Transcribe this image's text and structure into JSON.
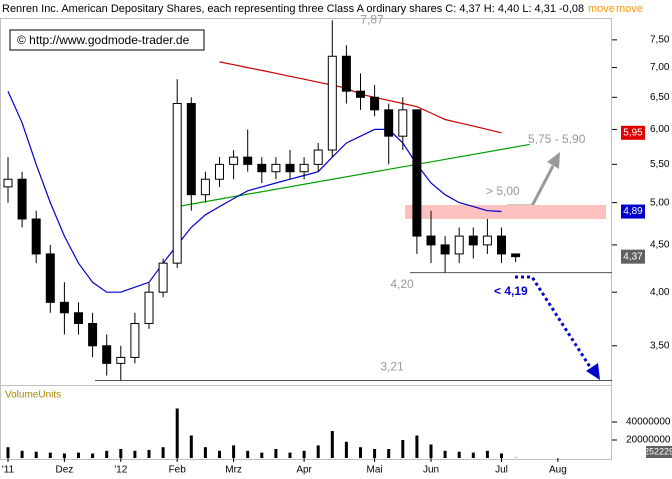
{
  "chart_data": {
    "type": "candlestick",
    "title": "Renren Inc. American Depositary Shares, each representing three Class A ordinary shares C: 4,37 H: 4,40 L: 4,31 -0,08",
    "links": [
      "move",
      "move"
    ],
    "watermark": "© http://www.godmode-trader.de",
    "categories": [
      "'11",
      null,
      null,
      null,
      "Dez",
      null,
      null,
      null,
      "'12",
      null,
      null,
      null,
      "Feb",
      null,
      null,
      null,
      "Mrz",
      null,
      null,
      null,
      null,
      "Apr",
      null,
      null,
      null,
      null,
      "Mai",
      null,
      null,
      null,
      "Jun",
      null,
      null,
      null,
      null,
      "Jul",
      null,
      null,
      null,
      "Aug",
      null,
      null,
      null,
      null
    ],
    "open": [
      5.2,
      5.3,
      4.8,
      4.4,
      3.9,
      3.8,
      3.7,
      3.5,
      3.35,
      3.4,
      3.7,
      4.0,
      4.3,
      6.4,
      5.1,
      5.3,
      5.5,
      5.6,
      5.5,
      5.4,
      5.5,
      5.4,
      5.5,
      5.7,
      7.2,
      6.6,
      6.5,
      6.3,
      5.9,
      6.3,
      4.6,
      4.5,
      4.4,
      4.6,
      4.5,
      4.6,
      4.4,
      null,
      null,
      null,
      null,
      null,
      null,
      null
    ],
    "high": [
      5.6,
      5.4,
      4.9,
      4.5,
      4.1,
      3.9,
      3.8,
      3.6,
      3.5,
      3.8,
      4.1,
      4.35,
      6.8,
      6.5,
      5.4,
      5.6,
      5.7,
      6.0,
      5.6,
      5.6,
      5.7,
      5.6,
      5.8,
      7.87,
      7.4,
      6.9,
      6.7,
      6.4,
      6.5,
      6.3,
      4.9,
      4.6,
      4.7,
      4.7,
      4.8,
      4.7,
      4.4,
      null,
      null,
      null,
      null,
      null,
      null,
      null
    ],
    "low": [
      5.0,
      4.7,
      4.3,
      3.8,
      3.6,
      3.6,
      3.4,
      3.25,
      3.21,
      3.35,
      3.65,
      3.95,
      4.25,
      4.9,
      5.0,
      5.2,
      5.3,
      5.4,
      5.25,
      5.3,
      5.3,
      5.3,
      5.4,
      5.6,
      6.4,
      6.3,
      6.2,
      5.5,
      5.7,
      4.4,
      4.3,
      4.2,
      4.3,
      4.35,
      4.4,
      4.3,
      4.31,
      null,
      null,
      null,
      null,
      null,
      null,
      null
    ],
    "close": [
      5.3,
      4.8,
      4.4,
      3.9,
      3.8,
      3.7,
      3.5,
      3.35,
      3.4,
      3.7,
      4.0,
      4.3,
      6.4,
      5.1,
      5.3,
      5.5,
      5.6,
      5.5,
      5.4,
      5.5,
      5.4,
      5.5,
      5.7,
      7.2,
      6.6,
      6.5,
      6.3,
      5.9,
      6.3,
      4.6,
      4.5,
      4.4,
      4.6,
      4.5,
      4.6,
      4.4,
      4.37,
      null,
      null,
      null,
      null,
      null,
      null,
      null
    ],
    "candle_colors": {
      "up": "#ffffff",
      "down": "#000000"
    },
    "log_scale": true,
    "ylim": [
      3.19,
      7.92
    ],
    "yticks": [
      {
        "value": 3.5,
        "label": "3,50"
      },
      {
        "value": 4,
        "label": "4,00"
      },
      {
        "value": 4.5,
        "label": "4,50"
      },
      {
        "value": 5,
        "label": "5,00"
      },
      {
        "value": 5.5,
        "label": "5,50"
      },
      {
        "value": 6,
        "label": "6,00"
      },
      {
        "value": 6.5,
        "label": "6,50"
      },
      {
        "value": 7,
        "label": "7,00"
      },
      {
        "value": 7.5,
        "label": "7,50"
      }
    ],
    "series": [
      {
        "color": "#0000cc",
        "values": [
          6.6,
          6.1,
          5.5,
          5.0,
          4.6,
          4.3,
          4.1,
          4.0,
          4.0,
          4.05,
          4.1,
          4.3,
          4.5,
          4.7,
          4.85,
          4.95,
          5.05,
          5.15,
          5.2,
          5.25,
          5.3,
          5.35,
          5.4,
          5.6,
          5.8,
          5.9,
          6.0,
          6.0,
          5.8,
          5.5,
          5.25,
          5.1,
          5.0,
          4.95,
          4.9,
          4.89,
          null,
          null,
          null,
          null,
          null,
          null,
          null,
          null
        ]
      },
      {
        "color": "#cc0000",
        "values": [
          null,
          null,
          null,
          null,
          null,
          null,
          null,
          null,
          null,
          null,
          null,
          null,
          null,
          null,
          null,
          7.1,
          7.05,
          7.0,
          6.95,
          6.9,
          6.85,
          6.8,
          6.75,
          6.7,
          6.65,
          6.55,
          6.5,
          6.45,
          6.4,
          6.35,
          6.25,
          6.15,
          6.1,
          6.05,
          6.0,
          5.95,
          null,
          null,
          null,
          null,
          null,
          null,
          null,
          null
        ]
      }
    ],
    "trendline": {
      "color": "#00a000",
      "values": [
        4.95,
        5.78
      ]
    },
    "zone": {
      "range": [
        4.8,
        4.97
      ],
      "color": "#ffc0c0"
    },
    "levels": [
      {
        "value": 7.87,
        "label": "7,87"
      },
      {
        "value": 4.2,
        "label": "4,20"
      },
      {
        "value": 3.21,
        "label": "3,21"
      }
    ],
    "price_labels": [
      {
        "value": 5.95,
        "label": "5,95",
        "color": "#e00000"
      },
      {
        "value": 4.89,
        "label": "4,89",
        "color": "#0000cc"
      },
      {
        "value": 4.37,
        "label": "4,37",
        "color": "#606060"
      }
    ],
    "annotations": [
      {
        "text": "> 5,00",
        "color": "#999999"
      },
      {
        "text": "5,75 - 5,90",
        "color": "#999999"
      },
      {
        "text": "< 4,19",
        "color": "#0000cc"
      }
    ],
    "volume": {
      "label": "VolumeUnits",
      "color": "#000000",
      "values": [
        12000000,
        8000000,
        7000000,
        6000000,
        5000000,
        6000000,
        5000000,
        8000000,
        10000000,
        8000000,
        9000000,
        12000000,
        55000000,
        25000000,
        12000000,
        8000000,
        14000000,
        8000000,
        6000000,
        10000000,
        6000000,
        8000000,
        14000000,
        30000000,
        18000000,
        12000000,
        10000000,
        10000000,
        20000000,
        25000000,
        15000000,
        8000000,
        7000000,
        6000000,
        8000000,
        5000000,
        252229,
        null,
        null,
        null,
        null,
        null,
        null,
        null
      ],
      "ylim": [
        0,
        80000000
      ],
      "yticks": [
        20000000,
        40000000
      ]
    }
  }
}
